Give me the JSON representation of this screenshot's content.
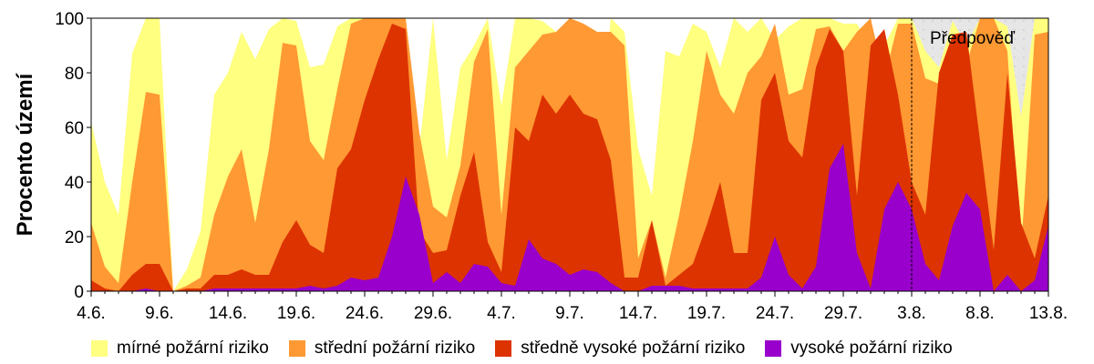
{
  "chart_data": {
    "type": "area",
    "stacked": true,
    "ylabel": "Procento území",
    "xlabel": "",
    "ylim": [
      0,
      100
    ],
    "yticks": [
      0,
      20,
      40,
      60,
      80,
      100
    ],
    "xticks": [
      "4.6.",
      "9.6.",
      "14.6.",
      "19.6.",
      "24.6.",
      "29.6.",
      "4.7.",
      "9.7.",
      "14.7.",
      "19.7.",
      "24.7.",
      "29.7.",
      "3.8.",
      "8.8.",
      "13.8."
    ],
    "x_start_day": 0,
    "x_end_day": 70,
    "forecast": {
      "label": "Předpověď",
      "start_tick": "3.8."
    },
    "legend_position": "bottom",
    "series": [
      {
        "name": "mírné požární riziko",
        "color": "#ffff80",
        "cumulative_top": [
          62,
          40,
          28,
          87,
          100,
          100,
          0,
          8,
          22,
          72,
          80,
          95,
          85,
          96,
          100,
          99,
          82,
          83,
          97,
          100,
          100,
          99,
          96,
          97,
          52,
          100,
          48,
          82,
          90,
          100,
          68,
          100,
          100,
          99,
          95,
          100,
          75,
          45,
          100,
          95,
          52,
          35,
          88,
          86,
          98,
          95,
          82,
          100,
          95,
          100,
          92,
          97,
          100,
          100,
          100,
          98,
          98,
          90,
          90,
          100,
          100,
          88,
          82,
          99,
          90,
          100,
          100,
          97,
          64,
          100,
          100
        ]
      },
      {
        "name": "střední požární riziko",
        "color": "#ff9933",
        "cumulative_top": [
          25,
          9,
          3,
          40,
          73,
          72,
          0,
          2,
          5,
          28,
          42,
          52,
          25,
          52,
          91,
          90,
          55,
          48,
          74,
          98,
          100,
          100,
          100,
          100,
          58,
          31,
          27,
          46,
          84,
          96,
          28,
          82,
          88,
          94,
          95,
          100,
          98,
          95,
          95,
          90,
          12,
          26,
          5,
          28,
          55,
          88,
          72,
          65,
          80,
          86,
          98,
          72,
          74,
          96,
          97,
          88,
          95,
          100,
          78,
          98,
          98,
          78,
          76,
          94,
          83,
          100,
          100,
          88,
          15,
          94,
          95
        ]
      },
      {
        "name": "středně vysoké požární riziko",
        "color": "#dd3300",
        "cumulative_top": [
          4,
          1,
          0,
          6,
          10,
          10,
          0,
          1,
          1,
          6,
          6,
          8,
          6,
          6,
          18,
          26,
          17,
          14,
          45,
          52,
          70,
          85,
          98,
          96,
          22,
          14,
          15,
          35,
          51,
          18,
          7,
          60,
          55,
          72,
          65,
          72,
          65,
          63,
          48,
          5,
          5,
          26,
          2,
          6,
          10,
          24,
          40,
          14,
          14,
          70,
          80,
          55,
          49,
          82,
          96,
          88,
          35,
          90,
          96,
          72,
          40,
          28,
          80,
          94,
          95,
          55,
          15,
          80,
          25,
          12,
          35
        ]
      },
      {
        "name": "vysoké požární riziko",
        "color": "#9900cc",
        "cumulative_top": [
          0,
          0,
          0,
          0,
          1,
          0,
          0,
          0,
          0,
          1,
          1,
          1,
          1,
          1,
          1,
          1,
          2,
          1,
          2,
          5,
          4,
          5,
          20,
          42,
          28,
          3,
          7,
          3,
          10,
          9,
          3,
          2,
          19,
          12,
          10,
          6,
          8,
          7,
          3,
          0,
          0,
          2,
          2,
          2,
          1,
          1,
          1,
          1,
          1,
          5,
          20,
          6,
          1,
          9,
          45,
          54,
          14,
          1,
          30,
          40,
          30,
          10,
          4,
          24,
          36,
          30,
          0,
          6,
          0,
          4,
          24
        ]
      }
    ]
  }
}
